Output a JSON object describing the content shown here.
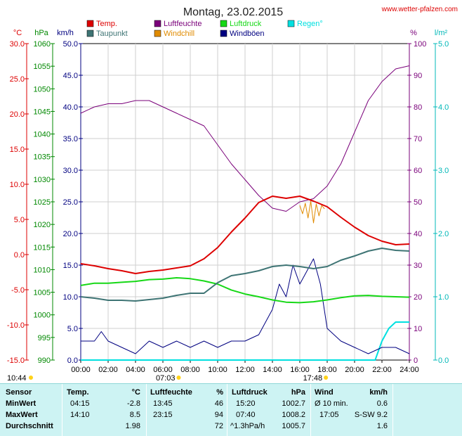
{
  "site": "www.wetter-pfalzen.com",
  "colors": {
    "temp": "#dd0000",
    "dewpoint": "#3e7474",
    "humidity": "#7a007a",
    "windchill": "#e08b00",
    "pressure": "#16d816",
    "wind": "#000080",
    "rain": "#00e0e0",
    "grid": "#cfcfcf"
  },
  "chart_data": {
    "type": "line",
    "title": "Montag, 23.02.2015",
    "x_labels": [
      "00:00",
      "02:00",
      "04:00",
      "06:00",
      "08:00",
      "10:00",
      "12:00",
      "14:00",
      "16:00",
      "18:00",
      "20:00",
      "22:00",
      "24:00"
    ],
    "legend": [
      {
        "key": "temp",
        "label": "Temp."
      },
      {
        "key": "humidity",
        "label": "Luftfeuchte"
      },
      {
        "key": "pressure",
        "label": "Luftdruck"
      },
      {
        "key": "rain",
        "label": "Regen°"
      },
      {
        "key": "dewpoint",
        "label": "Taupunkt"
      },
      {
        "key": "windchill",
        "label": "Windchill"
      },
      {
        "key": "wind",
        "label": "Windböen"
      }
    ],
    "axes": {
      "temp": {
        "unit": "°C",
        "ticks": [
          "30.0",
          "25.0",
          "20.0",
          "15.0",
          "10.0",
          "5.0",
          "0.0",
          "-5.0",
          "-10.0",
          "-15.0"
        ],
        "range": [
          -15,
          30
        ]
      },
      "pressure": {
        "unit": "hPa",
        "ticks": [
          "1060",
          "1055",
          "1050",
          "1045",
          "1040",
          "1035",
          "1030",
          "1025",
          "1020",
          "1015",
          "1010",
          "1005",
          "1000",
          "995",
          "990"
        ],
        "range": [
          990,
          1060
        ]
      },
      "wind": {
        "unit": "km/h",
        "ticks": [
          "50.0",
          "45.0",
          "40.0",
          "35.0",
          "30.0",
          "25.0",
          "20.0",
          "15.0",
          "10.0",
          "5.0",
          "0.0"
        ],
        "range": [
          0,
          50
        ]
      },
      "humidity": {
        "unit": "%",
        "ticks": [
          "100",
          "90",
          "80",
          "70",
          "60",
          "50",
          "40",
          "30",
          "20",
          "10",
          "0"
        ],
        "range": [
          0,
          100
        ]
      },
      "rain": {
        "unit": "l/m²",
        "ticks": [
          "5.0",
          "4.0",
          "3.0",
          "2.0",
          "1.0",
          "0.0"
        ],
        "range": [
          0,
          5
        ]
      }
    },
    "sun": {
      "sunrise": "07:03",
      "sunset": "17:48",
      "daylength": "10:44"
    },
    "series": {
      "temp": {
        "name": "Temp.",
        "points": [
          [
            0,
            -1.3
          ],
          [
            1,
            -1.6
          ],
          [
            2,
            -2.0
          ],
          [
            3,
            -2.3
          ],
          [
            4,
            -2.7
          ],
          [
            5,
            -2.4
          ],
          [
            6,
            -2.2
          ],
          [
            7,
            -1.9
          ],
          [
            8,
            -1.6
          ],
          [
            9,
            -0.6
          ],
          [
            10,
            1.0
          ],
          [
            11,
            3.2
          ],
          [
            12,
            5.2
          ],
          [
            13,
            7.4
          ],
          [
            14,
            8.3
          ],
          [
            15,
            8.0
          ],
          [
            16,
            8.3
          ],
          [
            17,
            7.6
          ],
          [
            18,
            6.8
          ],
          [
            19,
            5.3
          ],
          [
            20,
            3.9
          ],
          [
            21,
            2.7
          ],
          [
            22,
            1.9
          ],
          [
            23,
            1.4
          ],
          [
            24,
            1.5
          ]
        ]
      },
      "dewpoint": {
        "name": "Taupunkt",
        "points": [
          [
            0,
            -6.0
          ],
          [
            1,
            -6.2
          ],
          [
            2,
            -6.5
          ],
          [
            3,
            -6.5
          ],
          [
            4,
            -6.6
          ],
          [
            5,
            -6.4
          ],
          [
            6,
            -6.2
          ],
          [
            7,
            -5.8
          ],
          [
            8,
            -5.5
          ],
          [
            9,
            -5.5
          ],
          [
            10,
            -4.0
          ],
          [
            11,
            -3.0
          ],
          [
            12,
            -2.7
          ],
          [
            13,
            -2.3
          ],
          [
            14,
            -1.7
          ],
          [
            15,
            -1.5
          ],
          [
            16,
            -1.7
          ],
          [
            17,
            -2.0
          ],
          [
            18,
            -1.7
          ],
          [
            19,
            -0.8
          ],
          [
            20,
            -0.2
          ],
          [
            21,
            0.5
          ],
          [
            22,
            0.9
          ],
          [
            23,
            0.6
          ],
          [
            24,
            0.5
          ]
        ]
      },
      "humidity": {
        "name": "Luftfeuchte",
        "points": [
          [
            0,
            78
          ],
          [
            1,
            80
          ],
          [
            2,
            81
          ],
          [
            3,
            81
          ],
          [
            4,
            82
          ],
          [
            5,
            82
          ],
          [
            6,
            80
          ],
          [
            7,
            78
          ],
          [
            8,
            76
          ],
          [
            9,
            74
          ],
          [
            10,
            68
          ],
          [
            11,
            62
          ],
          [
            12,
            57
          ],
          [
            13,
            52
          ],
          [
            14,
            48
          ],
          [
            15,
            47
          ],
          [
            16,
            50
          ],
          [
            17,
            51
          ],
          [
            18,
            55
          ],
          [
            19,
            62
          ],
          [
            20,
            72
          ],
          [
            21,
            82
          ],
          [
            22,
            88
          ],
          [
            23,
            92
          ],
          [
            24,
            93
          ]
        ]
      },
      "windchill": {
        "name": "Windchill",
        "points": [
          [
            16.0,
            7.0
          ],
          [
            16.2,
            5.8
          ],
          [
            16.4,
            7.3
          ],
          [
            16.6,
            5.2
          ],
          [
            16.8,
            7.6
          ],
          [
            17.0,
            4.5
          ],
          [
            17.2,
            7.2
          ],
          [
            17.4,
            5.5
          ],
          [
            17.6,
            7.0
          ],
          [
            17.8,
            6.5
          ]
        ]
      },
      "pressure": {
        "name": "Luftdruck",
        "points": [
          [
            0,
            1006.5
          ],
          [
            1,
            1007.0
          ],
          [
            2,
            1007.0
          ],
          [
            3,
            1007.2
          ],
          [
            4,
            1007.4
          ],
          [
            5,
            1007.8
          ],
          [
            6,
            1007.9
          ],
          [
            7,
            1008.2
          ],
          [
            8,
            1008.0
          ],
          [
            9,
            1007.5
          ],
          [
            10,
            1006.8
          ],
          [
            11,
            1005.5
          ],
          [
            12,
            1004.6
          ],
          [
            13,
            1004.0
          ],
          [
            14,
            1003.3
          ],
          [
            15,
            1002.8
          ],
          [
            16,
            1002.7
          ],
          [
            17,
            1002.9
          ],
          [
            18,
            1003.3
          ],
          [
            19,
            1003.8
          ],
          [
            20,
            1004.2
          ],
          [
            21,
            1004.3
          ],
          [
            22,
            1004.1
          ],
          [
            23,
            1004.0
          ],
          [
            24,
            1003.9
          ]
        ]
      },
      "wind": {
        "name": "Windböen",
        "points": [
          [
            0,
            3
          ],
          [
            1,
            3
          ],
          [
            1.5,
            4.5
          ],
          [
            2,
            3
          ],
          [
            3,
            2
          ],
          [
            4,
            1
          ],
          [
            5,
            3
          ],
          [
            6,
            2
          ],
          [
            7,
            3
          ],
          [
            8,
            2
          ],
          [
            9,
            3
          ],
          [
            10,
            2
          ],
          [
            11,
            3
          ],
          [
            12,
            3
          ],
          [
            13,
            4
          ],
          [
            14,
            8
          ],
          [
            14.5,
            12
          ],
          [
            15,
            10
          ],
          [
            15.5,
            15
          ],
          [
            16,
            12
          ],
          [
            16.5,
            14
          ],
          [
            17,
            16
          ],
          [
            17.5,
            12
          ],
          [
            18,
            5
          ],
          [
            19,
            3
          ],
          [
            20,
            2
          ],
          [
            21,
            1
          ],
          [
            22,
            2
          ],
          [
            23,
            2
          ],
          [
            24,
            1
          ]
        ]
      },
      "rain": {
        "name": "Regen°",
        "points": [
          [
            0,
            0
          ],
          [
            21.5,
            0
          ],
          [
            22,
            0.3
          ],
          [
            22.5,
            0.5
          ],
          [
            23,
            0.6
          ],
          [
            24,
            0.6
          ]
        ]
      }
    }
  },
  "stats": {
    "headers": {
      "sensor": "Sensor",
      "temp": "Temp.",
      "temp_unit": "°C",
      "hum": "Luftfeuchte",
      "hum_unit": "%",
      "press": "Luftdruck",
      "press_unit": "hPa",
      "wind": "Wind",
      "wind_unit": "km/h"
    },
    "rows": [
      {
        "label": "MinWert",
        "temp_time": "04:15",
        "temp_val": "-2.8",
        "hum_time": "13:45",
        "hum_val": "46",
        "press_time": "15:20",
        "press_val": "1002.7",
        "wind_lbl": "Ø 10 min.",
        "wind_val": "0.6"
      },
      {
        "label": "MaxWert",
        "temp_time": "14:10",
        "temp_val": "8.5",
        "hum_time": "23:15",
        "hum_val": "94",
        "press_time": "07:40",
        "press_val": "1008.2",
        "wind_lbl": "17:05",
        "wind_val": "S-SW 9.2"
      },
      {
        "label": "Durchschnitt",
        "temp_time": "",
        "temp_val": "1.98",
        "hum_time": "",
        "hum_val": "72",
        "press_time": "^1.3hPa/h",
        "press_val": "1005.7",
        "wind_lbl": "",
        "wind_val": "1.6"
      }
    ]
  }
}
